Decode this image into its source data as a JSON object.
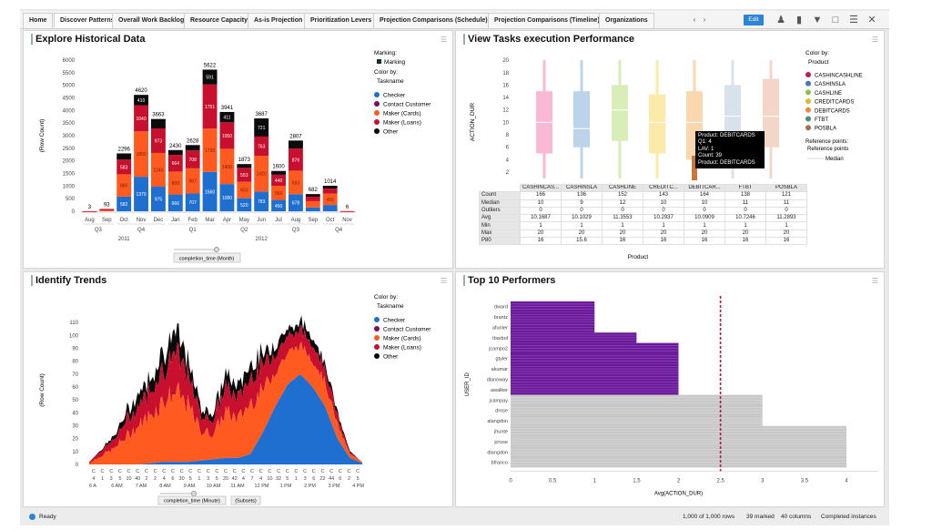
{
  "tabs": [
    "Home",
    "Discover Patterns",
    "Overall Work Backlog",
    "Resource Capacity",
    "As-is Projection",
    "Prioritization Levers",
    "Projection Comparisons (Schedule)",
    "Projection Comparisons (Timeline)",
    "Organizations"
  ],
  "active_tab": 1,
  "toolbar": {
    "edit_label": "Edit",
    "prev": "‹",
    "next": "›"
  },
  "colors": {
    "checker": "#1f6fd1",
    "contact": "#7b0f5e",
    "cards": "#ff5a1f",
    "loans": "#c8102e",
    "other": "#0b0b0b",
    "accent": "#2b84d8",
    "marked": "#6a1b9a",
    "unmarked": "#c8c8c8",
    "refline": "#b0185a"
  },
  "legend_taskname": {
    "title": "Color by:",
    "sub": "Taskname",
    "items": [
      "Checker",
      "Contact Customer",
      "Maker (Cards)",
      "Maker (Loans)",
      "Other"
    ]
  },
  "historical": {
    "title": "Explore Historical Data",
    "marking_title": "Marking:",
    "marking_item": "Marking",
    "ylabel": "(Row Count)",
    "slider_label": "completion_time (Month)"
  },
  "trends": {
    "title": "Identify Trends",
    "ylabel": "(Row Count)",
    "slider_label": "completion_time (Minute)",
    "slider_sub": "(Subsets)"
  },
  "boxplot": {
    "title": "View Tasks execution Performance",
    "ylabel": "ACTION_DUR",
    "xlabel": "Product",
    "legend_title": "Color by:",
    "legend_sub": "Product",
    "ref_title": "Reference points:",
    "ref_sub": "Reference points",
    "ref_median": "Median",
    "tooltip": [
      "Product: DEBITCARDS",
      "Q1: 4",
      "LAV: 1",
      "Count: 39",
      "Product: DEBITCARDS"
    ],
    "row_headers": [
      "Count",
      "Median",
      "Outliers",
      "Avg",
      "Min",
      "Max",
      "P80"
    ]
  },
  "performers": {
    "title": "Top 10 Performers",
    "ylabel": "USER_ID",
    "xlabel": "Avg(ACTION_DUR)"
  },
  "status": {
    "ready": "Ready",
    "rows": "1,000 of 1,000 rows",
    "marked": "39 marked",
    "columns": "40 columns",
    "table": "Completed instances"
  },
  "chart_data": [
    {
      "type": "bar",
      "stacked": true,
      "title": "Explore Historical Data",
      "ylabel": "(Row Count)",
      "ylim": [
        0,
        6000
      ],
      "yticks": [
        0,
        500,
        1000,
        1500,
        2000,
        2500,
        3000,
        3500,
        4000,
        4500,
        5000,
        5500,
        6000
      ],
      "categories": [
        "Aug",
        "Sep",
        "Oct",
        "Nov",
        "Dec",
        "Jan",
        "Feb",
        "Mar",
        "Apr",
        "May",
        "Jun",
        "Jul",
        "Aug",
        "Sep",
        "Oct",
        "Nov"
      ],
      "quarters": [
        {
          "label": "Q3",
          "span": 2
        },
        {
          "label": "Q4",
          "span": 3
        },
        {
          "label": "Q1",
          "span": 3
        },
        {
          "label": "Q2",
          "span": 3
        },
        {
          "label": "Q3",
          "span": 3
        },
        {
          "label": "Q4",
          "span": 2
        }
      ],
      "years": [
        {
          "label": "2011",
          "span": 5
        },
        {
          "label": "2012",
          "span": 11
        }
      ],
      "totals": [
        3,
        93,
        2296,
        4620,
        3663,
        2430,
        2628,
        5622,
        3941,
        1873,
        3687,
        1600,
        2807,
        682,
        1014,
        6
      ],
      "series": [
        {
          "name": "Checker",
          "values": [
            0,
            0,
            582,
            1370,
            975,
            666,
            707,
            1560,
            1080,
            520,
            783,
            450,
            678,
            150,
            250,
            0
          ]
        },
        {
          "name": "Contact Customer",
          "values": [
            0,
            0,
            0,
            0,
            0,
            0,
            0,
            0,
            0,
            0,
            0,
            0,
            0,
            0,
            0,
            0
          ]
        },
        {
          "name": "Maker (Cards)",
          "values": [
            2,
            40,
            885,
            1800,
            1340,
            909,
            997,
            1720,
            1400,
            650,
            1420,
            560,
            933,
            250,
            450,
            3
          ]
        },
        {
          "name": "Maker (Loans)",
          "values": [
            1,
            53,
            583,
            1040,
            973,
            664,
            708,
            1751,
            1050,
            553,
            763,
            440,
            876,
            180,
            200,
            3
          ]
        },
        {
          "name": "Other",
          "values": [
            0,
            0,
            246,
            410,
            375,
            191,
            216,
            591,
            411,
            150,
            721,
            150,
            320,
            102,
            114,
            0
          ]
        }
      ]
    },
    {
      "type": "box",
      "title": "View Tasks execution Performance",
      "ylim": [
        0,
        20
      ],
      "yticks": [
        2,
        4,
        6,
        8,
        10,
        12,
        14,
        16,
        18,
        20
      ],
      "products": [
        {
          "name": "CASHINCAS...",
          "legend": "CASHINCASHLINE",
          "q1": 5,
          "q3": 15,
          "median": 10,
          "min": 1,
          "max": 20,
          "count": 166,
          "outliers": 0,
          "avg": "10.1687",
          "p80": 16,
          "box": "#f9b8d3",
          "color": "#c2185b"
        },
        {
          "name": "CASHINSLA",
          "legend": "CASHINSLA",
          "q1": 6,
          "q3": 15,
          "median": 9,
          "min": 1,
          "max": 20,
          "count": 136,
          "outliers": 0,
          "avg": "10.1029",
          "p80": "15.6",
          "box": "#bcd4ea",
          "color": "#4a78b0"
        },
        {
          "name": "CASHLINE",
          "legend": "CASHLINE",
          "q1": 7,
          "q3": 16,
          "median": 12,
          "min": 1,
          "max": 20,
          "count": 152,
          "outliers": 0,
          "avg": "11.3553",
          "p80": 16,
          "box": "#d9edb8",
          "color": "#8bc34a"
        },
        {
          "name": "CREDITC...",
          "legend": "CREDITCARDS",
          "q1": 5,
          "q3": 14.5,
          "median": 10,
          "min": 1,
          "max": 20,
          "count": 143,
          "outliers": 0,
          "avg": "10.2937",
          "p80": 16,
          "box": "#fbeaa8",
          "color": "#d4c034"
        },
        {
          "name": "DEBITCAR...",
          "legend": "DEBITCARDS",
          "q1": 4,
          "q3": 15,
          "median": 10,
          "min": 1,
          "max": 20,
          "count": 164,
          "outliers": 0,
          "avg": "10.0909",
          "p80": 16,
          "box": "#fbd7b0",
          "color": "#ef8a3c"
        },
        {
          "name": "FTBT",
          "legend": "FTBT",
          "q1": 6,
          "q3": 16,
          "median": 11,
          "min": 1,
          "max": 20,
          "count": 138,
          "outliers": 0,
          "avg": "10.7246",
          "p80": 16,
          "box": "#d8e2ea",
          "color": "#4e8f7d"
        },
        {
          "name": "POSBLA",
          "legend": "POSBLA",
          "q1": 6,
          "q3": 17,
          "median": 11,
          "min": 1,
          "max": 20,
          "count": 121,
          "outliers": 0,
          "avg": "11.2893",
          "p80": 16,
          "box": "#f3d6c8",
          "color": "#a0714f"
        }
      ]
    },
    {
      "type": "area",
      "stacked": true,
      "title": "Identify Trends",
      "ylim": [
        0,
        115
      ],
      "yticks": [
        0,
        10,
        20,
        30,
        40,
        50,
        60,
        70,
        80,
        90,
        100,
        110
      ],
      "x_minute_labels": [
        "4",
        "1",
        "3",
        "5",
        "10",
        "40",
        "2",
        "2",
        "4",
        "6",
        "30",
        "5",
        "1",
        "3",
        "5",
        "20",
        "42",
        "4",
        "7",
        "4",
        "10",
        "32",
        "5",
        "1",
        "3",
        "6",
        "22",
        "44",
        "6",
        "2",
        "5"
      ],
      "x_hour_labels": [
        "6 A",
        "6 AM",
        "7 AM",
        "8 AM",
        "9 AM",
        "10 AM",
        "11 AM",
        "12 PM",
        "1 PM",
        "2 PM",
        "3 PM",
        "4 PM"
      ],
      "series": [
        {
          "name": "Checker",
          "values": [
            0,
            0,
            0,
            0,
            0,
            1,
            2,
            2,
            2,
            3,
            4,
            5,
            5,
            8,
            25,
            45,
            62,
            70,
            60,
            45,
            20,
            5,
            1
          ]
        },
        {
          "name": "Maker (Cards)",
          "values": [
            1,
            7,
            12,
            22,
            30,
            38,
            48,
            54,
            43,
            23,
            20,
            36,
            30,
            40,
            33,
            28,
            24,
            22,
            22,
            19,
            11,
            3,
            1
          ]
        },
        {
          "name": "Maker (Loans)",
          "values": [
            1,
            4,
            7,
            12,
            16,
            21,
            26,
            29,
            23,
            13,
            11,
            19,
            16,
            21,
            18,
            15,
            13,
            12,
            12,
            11,
            6,
            1,
            0
          ]
        },
        {
          "name": "Other",
          "values": [
            0,
            1,
            3,
            6,
            9,
            10,
            14,
            15,
            12,
            6,
            5,
            10,
            9,
            11,
            9,
            7,
            6,
            6,
            6,
            5,
            3,
            1,
            0
          ]
        }
      ]
    },
    {
      "type": "bar",
      "orientation": "horizontal",
      "title": "Top 10 Performers",
      "xlabel": "Avg(ACTION_DUR)",
      "ylabel": "USER_ID",
      "xlim": [
        0,
        4.2
      ],
      "xticks": [
        "0",
        "0.5",
        "1",
        "1.5",
        "2",
        "2.5",
        "3",
        "3.5",
        "4"
      ],
      "reference_line": 2.5,
      "categories": [
        "dward",
        "brantz",
        "afunter",
        "tbarbol",
        "jcampo2",
        "gtyler",
        "akumar",
        "dlanoway",
        "awalker",
        "jcampay",
        "drose",
        "alangdon",
        "jhunte",
        "jcruse",
        "dlangdon",
        "bfranco"
      ],
      "values": [
        1,
        1,
        1,
        1.5,
        2,
        2,
        2,
        2,
        2,
        3,
        3,
        3,
        4,
        4,
        4,
        4
      ],
      "marked": [
        true,
        true,
        true,
        true,
        true,
        true,
        true,
        true,
        true,
        false,
        false,
        false,
        false,
        false,
        false,
        false
      ]
    }
  ]
}
